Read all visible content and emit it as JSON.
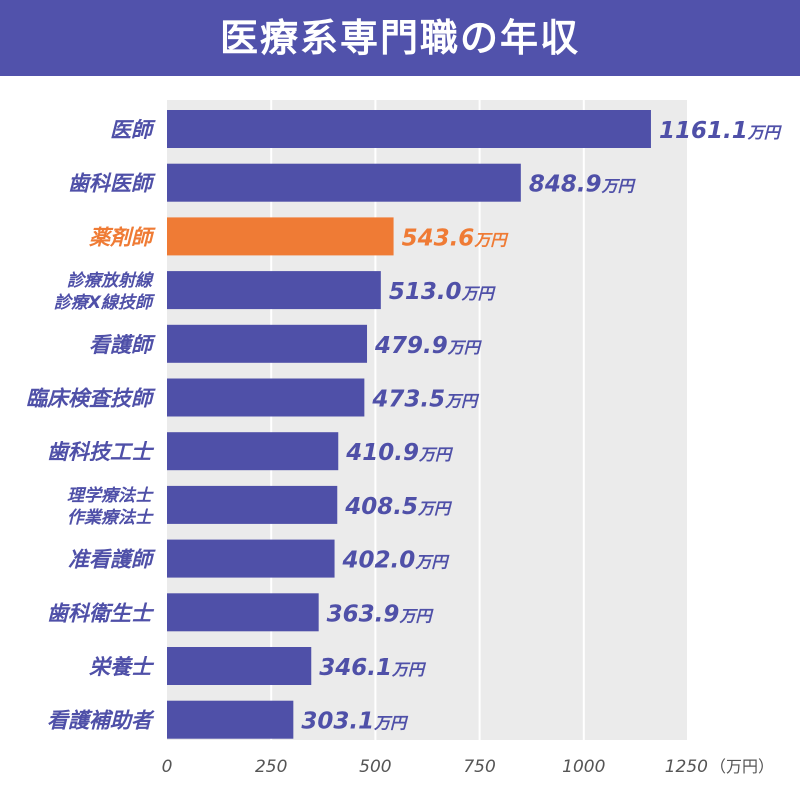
{
  "title": "医療系専門職の年収",
  "colors": {
    "bar": "#4f50a8",
    "highlight": "#ef7b35",
    "title_bg": "#5152ab",
    "plot_bg": "#ebebeb",
    "grid": "#ffffff"
  },
  "chart_data": {
    "type": "bar",
    "orientation": "horizontal",
    "title": "医療系専門職の年収",
    "categories": [
      [
        "医師"
      ],
      [
        "歯科医師"
      ],
      [
        "薬剤師"
      ],
      [
        "診療放射線",
        "診療X線技師"
      ],
      [
        "看護師"
      ],
      [
        "臨床検査技師"
      ],
      [
        "歯科技工士"
      ],
      [
        "理学療法士",
        "作業療法士"
      ],
      [
        "准看護師"
      ],
      [
        "歯科衛生士"
      ],
      [
        "栄養士"
      ],
      [
        "看護補助者"
      ]
    ],
    "values": [
      1161.1,
      848.9,
      543.6,
      513.0,
      479.9,
      473.5,
      410.9,
      408.5,
      402.0,
      363.9,
      346.1,
      303.1
    ],
    "value_labels": [
      "1161.1",
      "848.9",
      "543.6",
      "513.0",
      "479.9",
      "473.5",
      "410.9",
      "408.5",
      "402.0",
      "363.9",
      "346.1",
      "303.1"
    ],
    "value_unit": "万円",
    "highlight_index": 2,
    "xlim": [
      0,
      1250
    ],
    "ticks": [
      0,
      250,
      500,
      750,
      1000,
      1250
    ],
    "tick_labels": [
      "0",
      "250",
      "500",
      "750",
      "1000",
      "1250"
    ],
    "axis_unit_label": "（万円）",
    "grid": true
  }
}
